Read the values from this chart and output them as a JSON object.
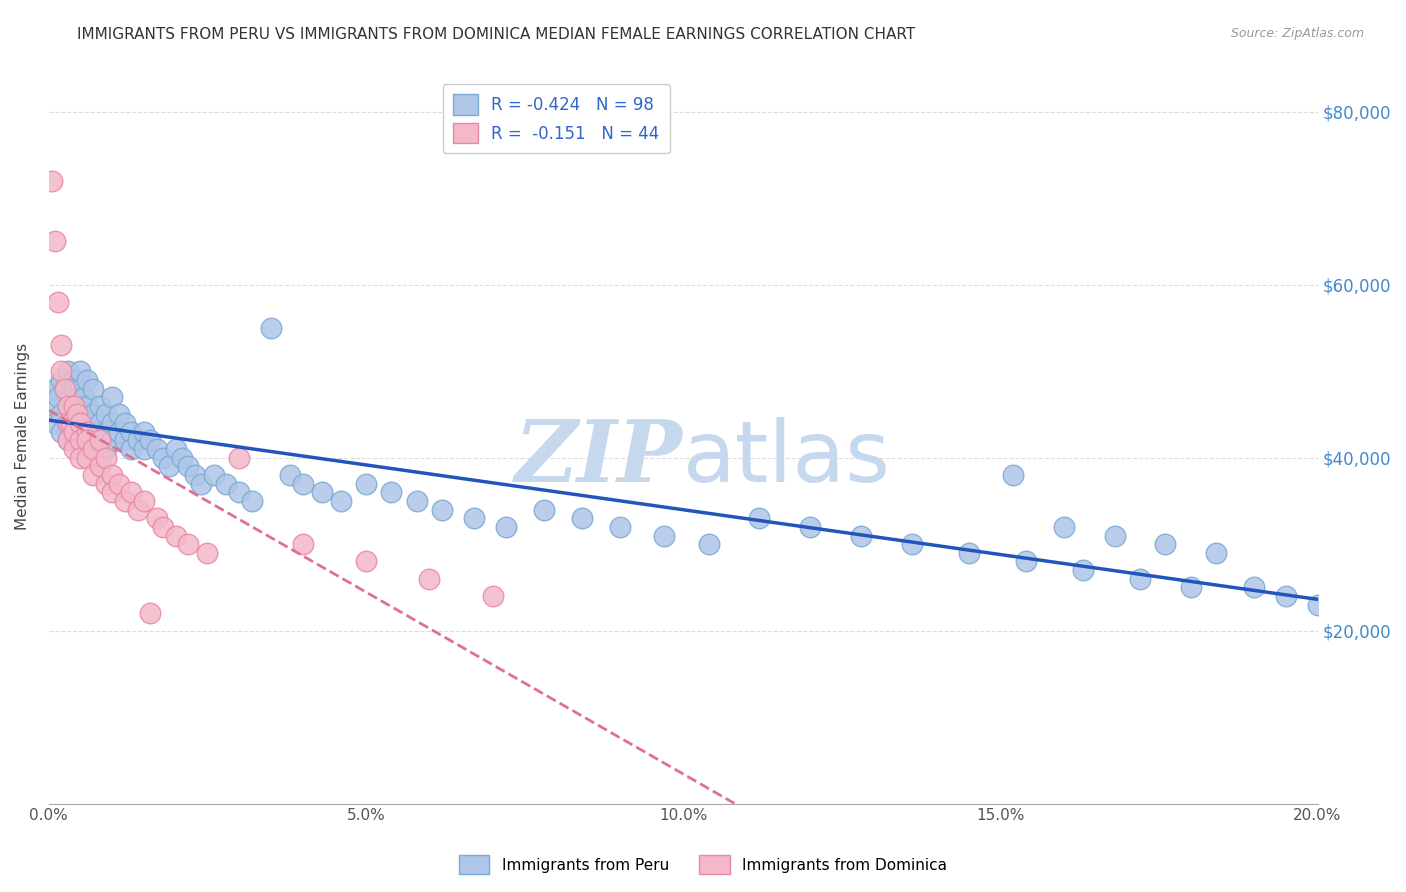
{
  "title": "IMMIGRANTS FROM PERU VS IMMIGRANTS FROM DOMINICA MEDIAN FEMALE EARNINGS CORRELATION CHART",
  "source": "Source: ZipAtlas.com",
  "ylabel": "Median Female Earnings",
  "xlim": [
    0.0,
    0.2
  ],
  "ylim": [
    0,
    85000
  ],
  "yticks": [
    0,
    20000,
    40000,
    60000,
    80000
  ],
  "ytick_labels": [
    "",
    "$20,000",
    "$40,000",
    "$60,000",
    "$80,000"
  ],
  "xticks": [
    0.0,
    0.05,
    0.1,
    0.15,
    0.2
  ],
  "xtick_labels": [
    "0.0%",
    "5.0%",
    "10.0%",
    "15.0%",
    "20.0%"
  ],
  "peru_color": "#aec6e8",
  "peru_edge_color": "#7baad4",
  "dominica_color": "#f4b8c8",
  "dominica_edge_color": "#e888a8",
  "trend_peru_color": "#2255bb",
  "trend_dominica_color": "#e07090",
  "R_peru": -0.424,
  "N_peru": 98,
  "R_dominica": -0.151,
  "N_dominica": 44,
  "peru_x": [
    0.0005,
    0.001,
    0.001,
    0.0015,
    0.002,
    0.002,
    0.002,
    0.0025,
    0.003,
    0.003,
    0.003,
    0.003,
    0.0035,
    0.004,
    0.004,
    0.004,
    0.004,
    0.004,
    0.0045,
    0.005,
    0.005,
    0.005,
    0.005,
    0.005,
    0.0055,
    0.006,
    0.006,
    0.006,
    0.006,
    0.007,
    0.007,
    0.007,
    0.007,
    0.008,
    0.008,
    0.008,
    0.008,
    0.009,
    0.009,
    0.009,
    0.01,
    0.01,
    0.01,
    0.011,
    0.011,
    0.012,
    0.012,
    0.013,
    0.013,
    0.014,
    0.015,
    0.015,
    0.016,
    0.017,
    0.018,
    0.019,
    0.02,
    0.021,
    0.022,
    0.023,
    0.024,
    0.026,
    0.028,
    0.03,
    0.032,
    0.035,
    0.038,
    0.04,
    0.043,
    0.046,
    0.05,
    0.054,
    0.058,
    0.062,
    0.067,
    0.072,
    0.078,
    0.084,
    0.09,
    0.097,
    0.104,
    0.112,
    0.12,
    0.128,
    0.136,
    0.145,
    0.154,
    0.163,
    0.172,
    0.18,
    0.152,
    0.16,
    0.168,
    0.176,
    0.184,
    0.19,
    0.195,
    0.2
  ],
  "peru_y": [
    46000,
    48000,
    44000,
    47000,
    49000,
    45000,
    43000,
    48000,
    50000,
    46000,
    44000,
    42000,
    47000,
    49000,
    46000,
    44000,
    42000,
    48000,
    46000,
    48000,
    46000,
    44000,
    42000,
    50000,
    47000,
    49000,
    46000,
    44000,
    42000,
    48000,
    45000,
    43000,
    41000,
    46000,
    44000,
    42000,
    40000,
    45000,
    43000,
    41000,
    47000,
    44000,
    42000,
    45000,
    43000,
    44000,
    42000,
    43000,
    41000,
    42000,
    43000,
    41000,
    42000,
    41000,
    40000,
    39000,
    41000,
    40000,
    39000,
    38000,
    37000,
    38000,
    37000,
    36000,
    35000,
    55000,
    38000,
    37000,
    36000,
    35000,
    37000,
    36000,
    35000,
    34000,
    33000,
    32000,
    34000,
    33000,
    32000,
    31000,
    30000,
    33000,
    32000,
    31000,
    30000,
    29000,
    28000,
    27000,
    26000,
    25000,
    38000,
    32000,
    31000,
    30000,
    29000,
    25000,
    24000,
    23000
  ],
  "dominica_x": [
    0.0005,
    0.001,
    0.0015,
    0.002,
    0.002,
    0.0025,
    0.003,
    0.003,
    0.003,
    0.0035,
    0.004,
    0.004,
    0.004,
    0.0045,
    0.005,
    0.005,
    0.005,
    0.006,
    0.006,
    0.006,
    0.007,
    0.007,
    0.008,
    0.008,
    0.009,
    0.009,
    0.01,
    0.01,
    0.011,
    0.012,
    0.013,
    0.014,
    0.015,
    0.016,
    0.017,
    0.018,
    0.02,
    0.022,
    0.025,
    0.03,
    0.04,
    0.05,
    0.06,
    0.07
  ],
  "dominica_y": [
    72000,
    65000,
    58000,
    53000,
    50000,
    48000,
    46000,
    44000,
    42000,
    44000,
    46000,
    43000,
    41000,
    45000,
    44000,
    42000,
    40000,
    43000,
    42000,
    40000,
    41000,
    38000,
    42000,
    39000,
    40000,
    37000,
    38000,
    36000,
    37000,
    35000,
    36000,
    34000,
    35000,
    22000,
    33000,
    32000,
    31000,
    30000,
    29000,
    40000,
    30000,
    28000,
    26000,
    24000
  ],
  "watermark_zip": "ZIP",
  "watermark_atlas": "atlas",
  "watermark_color": "#c5d8ee",
  "background_color": "#ffffff",
  "grid_color": "#dddddd",
  "title_fontsize": 11,
  "axis_label_fontsize": 11,
  "tick_fontsize": 11,
  "legend_fontsize": 11
}
